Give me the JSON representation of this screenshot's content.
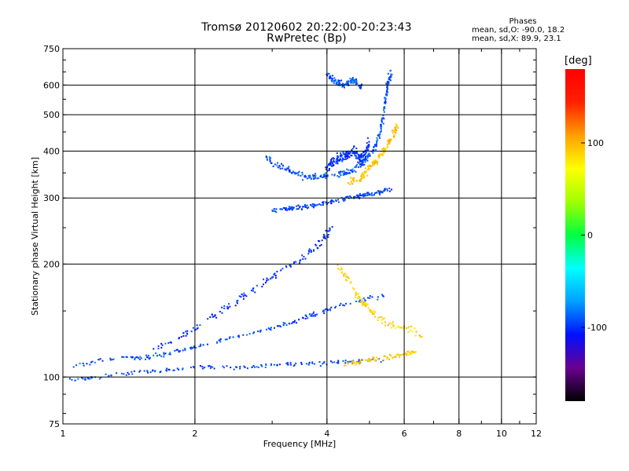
{
  "header": {
    "title_line1": "Tromsø 20120602 20:22:00-20:23:43",
    "title_line2": "RwPretec (Bp)"
  },
  "phases": {
    "heading": "Phases",
    "line_o": "mean, sd,O: -90.0, 18.2",
    "line_x": "mean, sd,X:  89.9, 23.1"
  },
  "colorbar": {
    "label": "[deg]",
    "ticks": [
      {
        "value": 100,
        "label": "100"
      },
      {
        "value": 0,
        "label": "0"
      },
      {
        "value": -100,
        "label": "-100"
      }
    ],
    "range": [
      -180,
      180
    ],
    "colors": [
      "#000000",
      "#6a0090",
      "#0010ff",
      "#00a0ff",
      "#00ffff",
      "#00ff40",
      "#a0ff00",
      "#ffff00",
      "#ffa000",
      "#ff2000",
      "#ff0000"
    ]
  },
  "chart_data": {
    "type": "scatter",
    "title": "Tromsø 20120602 20:22:00-20:23:43",
    "subtitle": "RwPretec (Bp)",
    "xlabel": "Frequency [MHz]",
    "ylabel": "Stationary phase Virtual Height [km]",
    "xscale": "log",
    "yscale": "log",
    "xlim": [
      1,
      12
    ],
    "ylim": [
      75,
      750
    ],
    "grid": true,
    "x_ticks": [
      1,
      2,
      4,
      6,
      8,
      10,
      12
    ],
    "y_ticks": [
      75,
      100,
      200,
      300,
      400,
      500,
      600,
      750
    ],
    "x_gridlines": [
      2,
      4,
      6,
      8,
      10
    ],
    "y_gridlines": [
      100,
      200,
      300,
      400,
      500,
      600
    ],
    "traces": [
      {
        "id": "o-e-layer",
        "phase_deg": -95,
        "spread": 0.018,
        "density": 3,
        "points": [
          [
            1.03,
            98
          ],
          [
            1.2,
            100
          ],
          [
            1.5,
            103
          ],
          [
            1.8,
            105
          ],
          [
            2.2,
            106
          ],
          [
            2.8,
            107
          ],
          [
            3.3,
            108
          ],
          [
            4.0,
            109
          ],
          [
            4.6,
            110
          ],
          [
            5.4,
            111
          ]
        ]
      },
      {
        "id": "o-f-low",
        "phase_deg": -95,
        "spread": 0.02,
        "density": 3,
        "points": [
          [
            1.05,
            107
          ],
          [
            1.3,
            112
          ],
          [
            1.55,
            113
          ],
          [
            1.75,
            116
          ],
          [
            2.0,
            120
          ],
          [
            2.5,
            128
          ],
          [
            3.0,
            135
          ],
          [
            3.4,
            141
          ],
          [
            3.8,
            148
          ],
          [
            4.5,
            158
          ],
          [
            5.4,
            165
          ]
        ]
      },
      {
        "id": "o-f-mid",
        "phase_deg": -100,
        "spread": 0.03,
        "density": 3,
        "points": [
          [
            1.6,
            118
          ],
          [
            1.9,
            130
          ],
          [
            2.2,
            145
          ],
          [
            2.5,
            160
          ],
          [
            2.8,
            175
          ],
          [
            3.1,
            190
          ],
          [
            3.6,
            210
          ],
          [
            3.9,
            230
          ],
          [
            4.1,
            250
          ]
        ]
      },
      {
        "id": "o-f2-low",
        "phase_deg": -95,
        "spread": 0.02,
        "density": 4,
        "points": [
          [
            3.0,
            278
          ],
          [
            3.3,
            281
          ],
          [
            3.6,
            285
          ],
          [
            4.0,
            292
          ],
          [
            4.4,
            298
          ],
          [
            4.8,
            305
          ],
          [
            5.2,
            310
          ],
          [
            5.6,
            315
          ]
        ]
      },
      {
        "id": "o-f2-upper",
        "phase_deg": -92,
        "spread": 0.03,
        "density": 4,
        "points": [
          [
            2.9,
            385
          ],
          [
            3.2,
            360
          ],
          [
            3.5,
            345
          ],
          [
            3.8,
            340
          ],
          [
            4.2,
            345
          ],
          [
            4.5,
            352
          ],
          [
            4.8,
            370
          ],
          [
            5.1,
            400
          ],
          [
            5.3,
            450
          ],
          [
            5.4,
            520
          ],
          [
            5.5,
            600
          ],
          [
            5.6,
            650
          ]
        ]
      },
      {
        "id": "o-f2-cluster",
        "phase_deg": -100,
        "spread": 0.05,
        "density": 6,
        "points": [
          [
            4.0,
            360
          ],
          [
            4.2,
            380
          ],
          [
            4.4,
            390
          ],
          [
            4.6,
            400
          ],
          [
            4.8,
            380
          ],
          [
            5.0,
            420
          ]
        ]
      },
      {
        "id": "o-top-cluster",
        "phase_deg": -90,
        "spread": 0.03,
        "density": 5,
        "points": [
          [
            4.0,
            640
          ],
          [
            4.2,
            610
          ],
          [
            4.4,
            600
          ],
          [
            4.6,
            620
          ],
          [
            4.8,
            590
          ]
        ]
      },
      {
        "id": "x-f2",
        "phase_deg": 95,
        "spread": 0.03,
        "density": 4,
        "points": [
          [
            4.5,
            330
          ],
          [
            4.8,
            340
          ],
          [
            5.0,
            360
          ],
          [
            5.2,
            380
          ],
          [
            5.4,
            400
          ],
          [
            5.6,
            430
          ],
          [
            5.8,
            470
          ]
        ]
      },
      {
        "id": "x-e-layer",
        "phase_deg": 95,
        "spread": 0.02,
        "density": 3,
        "points": [
          [
            4.3,
            108
          ],
          [
            4.8,
            110
          ],
          [
            5.4,
            112
          ],
          [
            6.0,
            115
          ],
          [
            6.6,
            118
          ]
        ]
      },
      {
        "id": "x-mid",
        "phase_deg": 90,
        "spread": 0.04,
        "density": 3,
        "points": [
          [
            4.2,
            200
          ],
          [
            4.5,
            180
          ],
          [
            4.8,
            160
          ],
          [
            5.0,
            150
          ],
          [
            5.4,
            140
          ],
          [
            6.0,
            135
          ],
          [
            6.6,
            130
          ]
        ]
      }
    ]
  }
}
